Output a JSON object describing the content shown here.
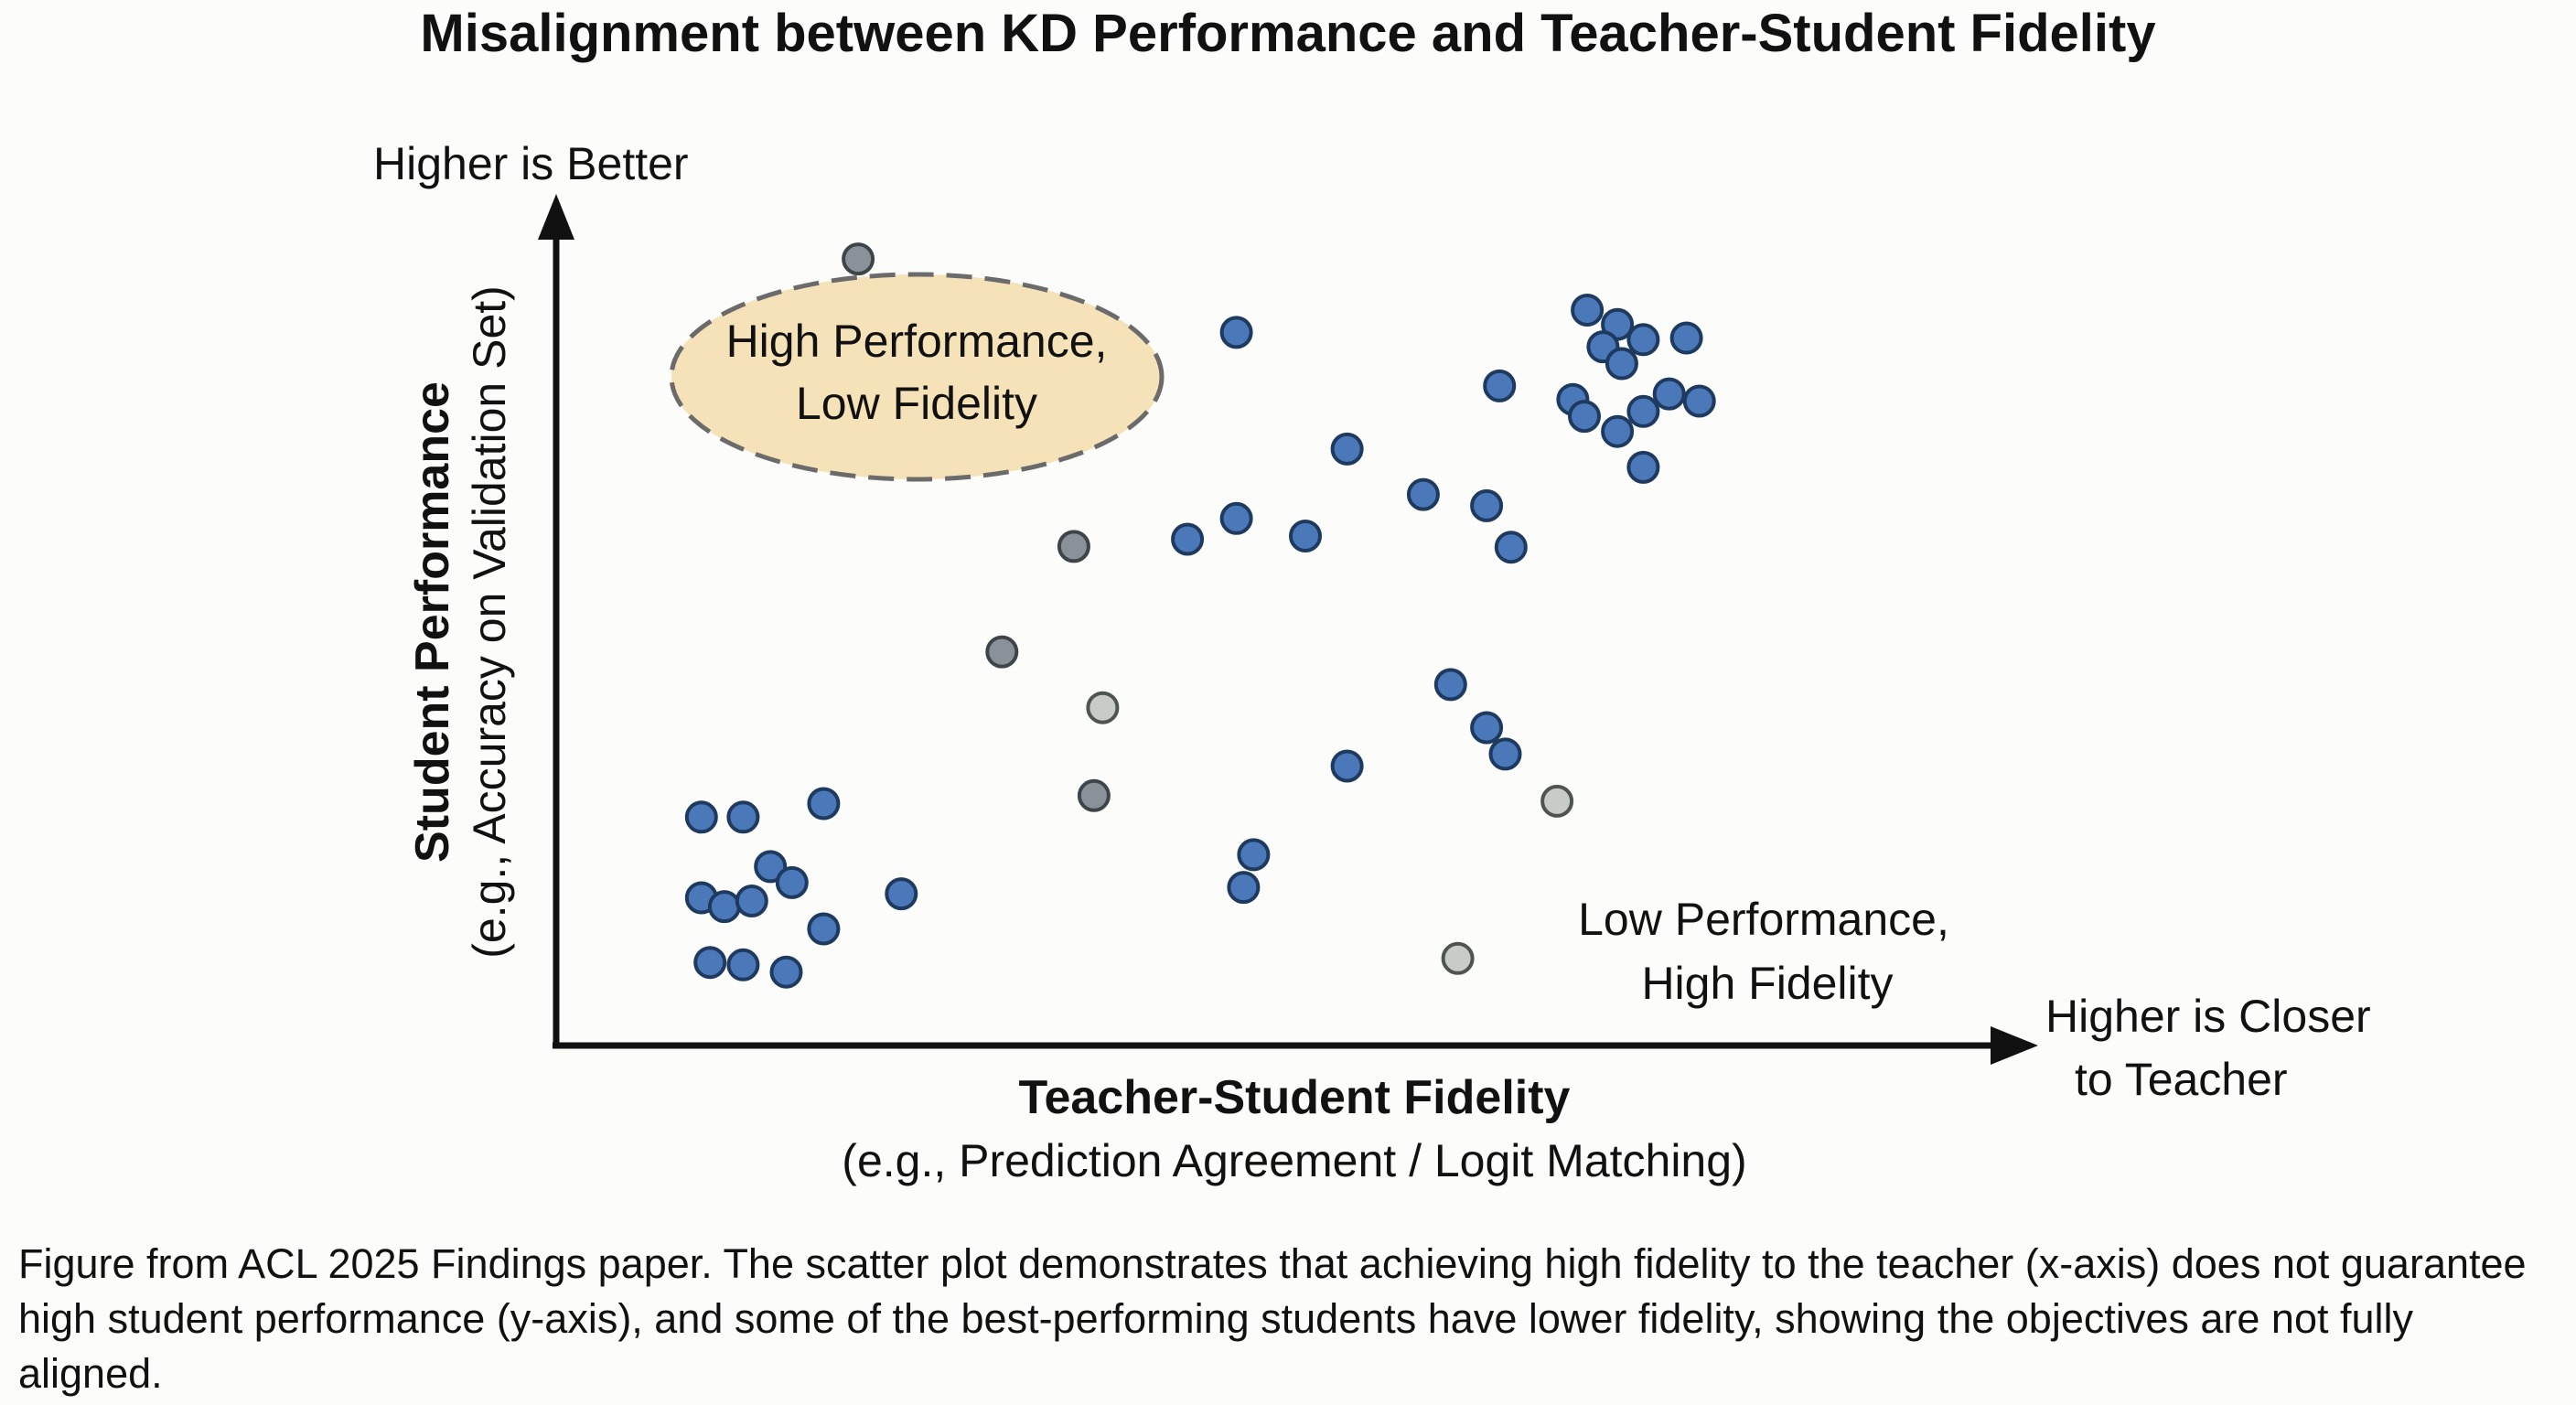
{
  "chart_data": {
    "type": "scatter",
    "title": "Misalignment between KD Performance and Teacher-Student Fidelity",
    "xlabel": "Teacher-Student Fidelity",
    "xlabel_sub": "(e.g., Prediction Agreement / Logit Matching)",
    "ylabel": "Student Performance",
    "ylabel_sub": "(e.g., Accuracy on Validation Set)",
    "x_arrow_label": [
      "Higher is Closer",
      "to Teacher"
    ],
    "y_arrow_label": "Higher is Better",
    "xlim": [
      0,
      100
    ],
    "ylim": [
      0,
      100
    ],
    "grid": false,
    "ticks": false,
    "colors": {
      "blue": "#4a78b9",
      "blue_dark": "#2a4a78",
      "gray": "#8a9199",
      "gray_light": "#c9cbc6",
      "highlight_fill": "#f6e2b8"
    },
    "points": [
      {
        "x": 10.1,
        "y": 28.6,
        "color": "blue"
      },
      {
        "x": 13.0,
        "y": 28.6,
        "color": "blue"
      },
      {
        "x": 18.6,
        "y": 30.3,
        "color": "blue"
      },
      {
        "x": 14.9,
        "y": 22.4,
        "color": "blue"
      },
      {
        "x": 16.4,
        "y": 20.4,
        "color": "blue"
      },
      {
        "x": 10.1,
        "y": 18.5,
        "color": "blue"
      },
      {
        "x": 11.7,
        "y": 17.4,
        "color": "blue"
      },
      {
        "x": 13.6,
        "y": 18.1,
        "color": "blue"
      },
      {
        "x": 18.6,
        "y": 14.6,
        "color": "blue"
      },
      {
        "x": 24.0,
        "y": 19.0,
        "color": "blue"
      },
      {
        "x": 10.7,
        "y": 10.4,
        "color": "blue"
      },
      {
        "x": 13.0,
        "y": 10.1,
        "color": "blue"
      },
      {
        "x": 16.0,
        "y": 9.2,
        "color": "blue"
      },
      {
        "x": 21.0,
        "y": 98.5,
        "color": "gray"
      },
      {
        "x": 36.0,
        "y": 62.5,
        "color": "gray"
      },
      {
        "x": 31.0,
        "y": 49.3,
        "color": "gray"
      },
      {
        "x": 38.0,
        "y": 42.3,
        "color": "gray_light"
      },
      {
        "x": 37.4,
        "y": 31.3,
        "color": "gray"
      },
      {
        "x": 47.3,
        "y": 89.3,
        "color": "blue"
      },
      {
        "x": 55.0,
        "y": 74.7,
        "color": "blue"
      },
      {
        "x": 60.3,
        "y": 69.0,
        "color": "blue"
      },
      {
        "x": 65.6,
        "y": 82.6,
        "color": "blue"
      },
      {
        "x": 64.7,
        "y": 67.6,
        "color": "blue"
      },
      {
        "x": 66.4,
        "y": 62.4,
        "color": "blue"
      },
      {
        "x": 43.9,
        "y": 63.4,
        "color": "blue"
      },
      {
        "x": 47.3,
        "y": 66.0,
        "color": "blue"
      },
      {
        "x": 52.1,
        "y": 63.8,
        "color": "blue"
      },
      {
        "x": 62.2,
        "y": 45.2,
        "color": "blue"
      },
      {
        "x": 64.7,
        "y": 39.8,
        "color": "blue"
      },
      {
        "x": 66.0,
        "y": 36.5,
        "color": "blue"
      },
      {
        "x": 55.0,
        "y": 35.0,
        "color": "blue"
      },
      {
        "x": 48.5,
        "y": 23.9,
        "color": "blue"
      },
      {
        "x": 47.8,
        "y": 19.8,
        "color": "blue"
      },
      {
        "x": 69.6,
        "y": 30.6,
        "color": "gray_light"
      },
      {
        "x": 62.7,
        "y": 10.9,
        "color": "gray_light"
      },
      {
        "x": 71.7,
        "y": 92.1,
        "color": "blue"
      },
      {
        "x": 73.8,
        "y": 90.3,
        "color": "blue"
      },
      {
        "x": 72.8,
        "y": 87.5,
        "color": "blue"
      },
      {
        "x": 74.1,
        "y": 85.4,
        "color": "blue"
      },
      {
        "x": 75.6,
        "y": 88.4,
        "color": "blue"
      },
      {
        "x": 78.6,
        "y": 88.6,
        "color": "blue"
      },
      {
        "x": 77.4,
        "y": 81.6,
        "color": "blue"
      },
      {
        "x": 79.5,
        "y": 80.7,
        "color": "blue"
      },
      {
        "x": 70.7,
        "y": 80.9,
        "color": "blue"
      },
      {
        "x": 71.5,
        "y": 78.8,
        "color": "blue"
      },
      {
        "x": 73.8,
        "y": 76.9,
        "color": "blue"
      },
      {
        "x": 75.6,
        "y": 79.4,
        "color": "blue"
      },
      {
        "x": 75.6,
        "y": 72.4,
        "color": "blue"
      }
    ],
    "annotations": [
      {
        "lines": [
          "High Performance,",
          "Low Fidelity"
        ],
        "highlight": true
      },
      {
        "lines": [
          "Low Performance,",
          "High Fidelity"
        ],
        "highlight": false
      }
    ]
  },
  "caption": "Figure from ACL 2025 Findings paper. The scatter plot demonstrates that achieving high fidelity to the teacher (x-axis) does not guarantee high student performance (y-axis), and some of the best-performing students have lower fidelity, showing the objectives are not fully aligned."
}
